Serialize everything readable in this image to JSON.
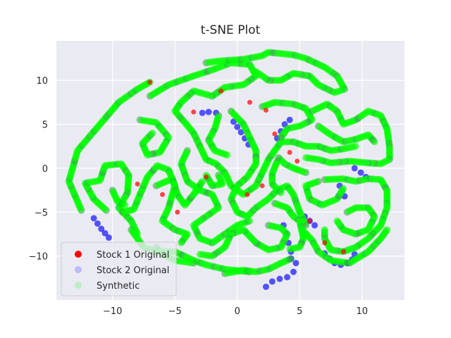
{
  "chart_data": {
    "type": "scatter",
    "title": "t-SNE Plot",
    "xlabel": "",
    "ylabel": "",
    "xlim": [
      -14.5,
      13.4
    ],
    "ylim": [
      -15,
      14.5
    ],
    "x_ticks": [
      -10,
      -5,
      0,
      5,
      10
    ],
    "x_tick_labels": [
      "−10",
      "−5",
      "0",
      "5",
      "10"
    ],
    "y_ticks": [
      -10,
      -5,
      0,
      5,
      10
    ],
    "y_tick_labels": [
      "−10",
      "−5",
      "0",
      "5",
      "10"
    ],
    "grid": true,
    "legend_position": "lower-left",
    "series": [
      {
        "name": "Stock 1 Original",
        "color": "#ff0000",
        "alpha": 1.0,
        "x": [
          -7.0,
          -1.3,
          -3.5,
          1.0,
          2.3,
          3.0,
          4.2,
          4.8,
          -2.5,
          0.8,
          2.0,
          -6.0,
          7.0,
          8.5,
          -8.0,
          5.8,
          -4.8
        ],
        "y": [
          9.8,
          8.8,
          6.4,
          7.5,
          6.6,
          3.9,
          1.8,
          0.8,
          -1.0,
          -3.0,
          -2.0,
          -3.0,
          -8.5,
          -9.5,
          -1.8,
          -6.0,
          -5.0
        ]
      },
      {
        "name": "Stock 2 Original",
        "color": "#0000ff",
        "alpha": 0.2,
        "x": [
          -11.5,
          -11.2,
          -10.9,
          -10.6,
          -10.3,
          -2.8,
          -2.3,
          -1.7,
          -0.3,
          0.0,
          0.3,
          0.6,
          0.9,
          3.2,
          3.5,
          3.8,
          4.2,
          4.7,
          4.5,
          4.0,
          3.4,
          2.8,
          2.3,
          3.7,
          3.9,
          4.1,
          4.3,
          4.3,
          7.0,
          7.4,
          7.8,
          8.3,
          8.8,
          9.2,
          9.4,
          5.0,
          5.4,
          5.8,
          6.2,
          9.4,
          9.9,
          10.3,
          8.2,
          8.4,
          8.6
        ],
        "y": [
          -5.7,
          -6.3,
          -6.9,
          -7.4,
          -7.9,
          6.3,
          6.4,
          6.3,
          5.3,
          4.7,
          4.1,
          3.4,
          2.7,
          3.4,
          4.2,
          5.0,
          5.5,
          -10.8,
          -11.8,
          -12.4,
          -12.6,
          -12.9,
          -13.5,
          -6.5,
          -7.5,
          -8.5,
          -9.5,
          -10.3,
          -9.7,
          -10.3,
          -10.8,
          -11.0,
          -10.8,
          -10.4,
          -9.8,
          -5.0,
          -5.5,
          -6.0,
          -6.5,
          0.0,
          -0.5,
          -1.0,
          -2.0,
          -2.6,
          -3.2
        ],
        "note_hidden": null
      },
      {
        "name": "Synthetic",
        "color": "#00ff00",
        "alpha": 0.2
      }
    ]
  },
  "legend": {
    "items": [
      {
        "label": "Stock 1 Original",
        "color": "#ff0000",
        "alpha": 1.0
      },
      {
        "label": "Stock 2 Original",
        "color": "#0000ff",
        "alpha": 0.2
      },
      {
        "label": "Synthetic",
        "color": "#00ff00",
        "alpha": 0.2
      }
    ]
  },
  "colors": {
    "plot_background": "#eaeaf2",
    "grid": "#ffffff",
    "page_background": "#ffffff",
    "text": "#262626"
  }
}
